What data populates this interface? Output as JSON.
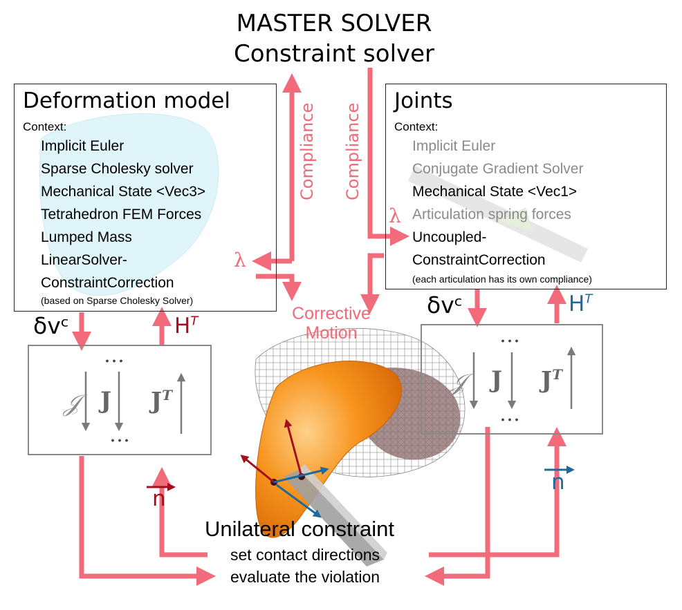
{
  "title_master": "MASTER SOLVER",
  "title_constraint": "Constraint solver",
  "deformation": {
    "title": "Deformation model",
    "context_label": "Context:",
    "items": [
      "Implicit Euler",
      "Sparse Cholesky solver",
      "Mechanical State <Vec3>",
      "Tetrahedron FEM Forces",
      "Lumped Mass",
      "LinearSolver-",
      "ConstraintCorrection"
    ],
    "note": "(based on Sparse Cholesky Solver)"
  },
  "joints": {
    "title": "Joints",
    "context_label": "Context:",
    "items_grey": [
      "Implicit Euler",
      "Conjugate Gradient Solver"
    ],
    "item_state": "Mechanical State <Vec1>",
    "item_spring": "Articulation spring forces",
    "items_black": [
      "Uncoupled-",
      "ConstraintCorrection"
    ],
    "note": "(each articulation has its own compliance)"
  },
  "labels": {
    "compliance": "Compliance",
    "lambda": "λ",
    "corrective_1": "Corrective",
    "corrective_2": "Motion",
    "delta_v": "δvᶜ",
    "h_letter": "H",
    "t_sup": "T",
    "n": "n",
    "dots": "…",
    "j_script": "𝒥",
    "j_bold": "J"
  },
  "unilateral": {
    "title": "Unilateral constraint",
    "line1": "set contact directions",
    "line2": "evaluate the violation"
  },
  "colors": {
    "arrow_pink": "#f26b7a",
    "dark_red": "#a3101c",
    "blue": "#1f6a9a",
    "grey": "#808080",
    "orange": "#f39321"
  }
}
